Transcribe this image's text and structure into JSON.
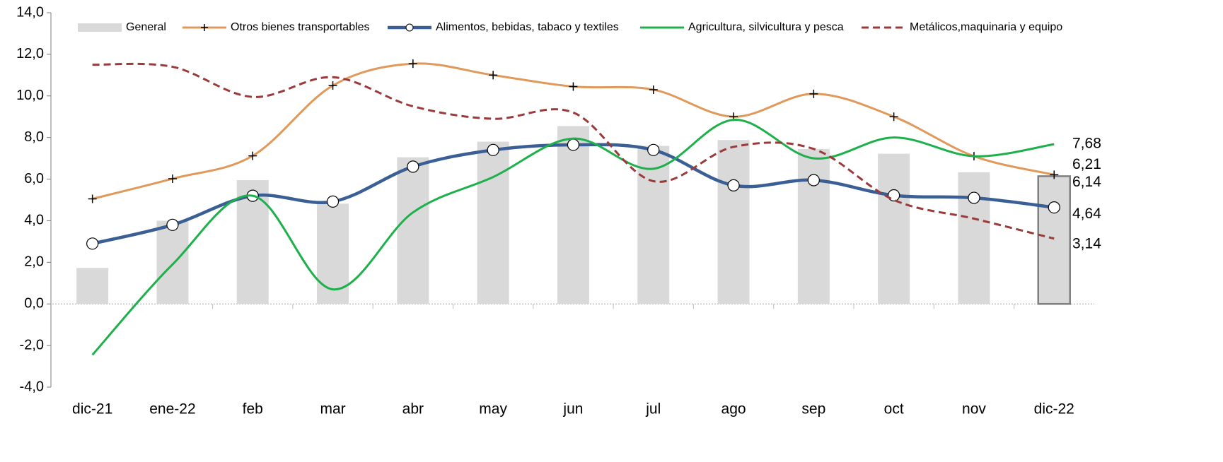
{
  "chart_data": {
    "type": "combo",
    "categories": [
      "dic-21",
      "ene-22",
      "feb",
      "mar",
      "abr",
      "may",
      "jun",
      "jul",
      "ago",
      "sep",
      "oct",
      "nov",
      "dic-22"
    ],
    "ylim": [
      -4,
      14
    ],
    "yticks": [
      {
        "value": -4,
        "label": "-4,0"
      },
      {
        "value": -2,
        "label": "-2,0"
      },
      {
        "value": 0,
        "label": "0,0"
      },
      {
        "value": 2,
        "label": "2,0"
      },
      {
        "value": 4,
        "label": "4,0"
      },
      {
        "value": 6,
        "label": "6,0"
      },
      {
        "value": 8,
        "label": "8,0"
      },
      {
        "value": 10,
        "label": "10,0"
      },
      {
        "value": 12,
        "label": "12,0"
      },
      {
        "value": 14,
        "label": "14,0"
      }
    ],
    "legend": "top",
    "series": [
      {
        "name": "General",
        "type": "bar",
        "color": "#d9d9d9",
        "value_label_color": "#000000",
        "values": [
          1.73,
          4.0,
          5.95,
          4.82,
          7.05,
          7.8,
          8.55,
          7.6,
          7.88,
          7.45,
          7.22,
          6.33,
          6.14
        ],
        "value_labels": [
          null,
          null,
          null,
          null,
          null,
          null,
          null,
          null,
          null,
          null,
          null,
          null,
          "6,14"
        ]
      },
      {
        "name": "Otros bienes transportables",
        "type": "line",
        "color": "#e0995a",
        "marker": "plus",
        "value_label_color": "#a0703a",
        "values": [
          5.05,
          6.02,
          7.12,
          10.5,
          11.55,
          11.0,
          10.45,
          10.3,
          9.0,
          10.1,
          9.0,
          7.1,
          6.21
        ],
        "value_labels": [
          null,
          null,
          null,
          null,
          null,
          null,
          null,
          null,
          null,
          null,
          null,
          null,
          "6,21"
        ]
      },
      {
        "name": "Alimentos, bebidas, tabaco y textiles",
        "type": "line",
        "color": "#3a5f95",
        "marker": "circle",
        "value_label_color": "#1f8dcc",
        "values": [
          2.9,
          3.8,
          5.2,
          4.92,
          6.6,
          7.4,
          7.65,
          7.4,
          5.7,
          5.95,
          5.22,
          5.1,
          4.64
        ],
        "value_labels": [
          null,
          null,
          null,
          null,
          null,
          null,
          null,
          null,
          null,
          null,
          null,
          null,
          "4,64"
        ]
      },
      {
        "name": "Agricultura, silvicultura y pesca",
        "type": "line",
        "color": "#1db04b",
        "value_label_color": "#3a9a3a",
        "values": [
          -2.45,
          1.9,
          5.2,
          0.7,
          4.4,
          6.1,
          7.95,
          6.5,
          8.85,
          7.0,
          8.0,
          7.1,
          7.68
        ],
        "value_labels": [
          null,
          null,
          null,
          null,
          null,
          null,
          null,
          null,
          null,
          null,
          null,
          null,
          "7,68"
        ]
      },
      {
        "name": "Metálicos,maquinaria y equipo",
        "type": "line",
        "color": "#9b3a3a",
        "dash": true,
        "value_label_color": "#a0703a",
        "values": [
          11.5,
          11.4,
          9.95,
          10.9,
          9.5,
          8.9,
          9.2,
          5.9,
          7.55,
          7.45,
          5.0,
          4.1,
          3.14
        ],
        "value_labels": [
          null,
          null,
          null,
          null,
          null,
          null,
          null,
          null,
          null,
          null,
          null,
          null,
          "3,14"
        ]
      }
    ]
  }
}
